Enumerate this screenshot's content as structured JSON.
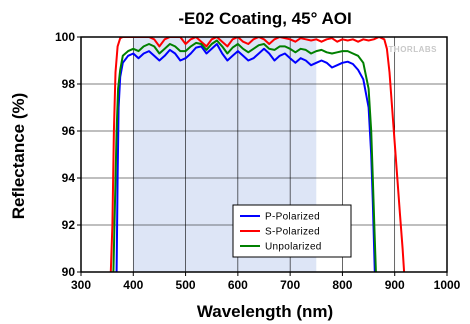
{
  "chart_data": {
    "type": "line",
    "title": "-E02 Coating, 45° AOI",
    "xlabel": "Wavelength (nm)",
    "ylabel": "Reflectance (%)",
    "xlim": [
      300,
      1000
    ],
    "ylim": [
      90,
      100
    ],
    "xticks": [
      300,
      400,
      500,
      600,
      700,
      800,
      900,
      1000
    ],
    "yticks": [
      90,
      92,
      94,
      96,
      98,
      100
    ],
    "grid": true,
    "legend_position": "bottom-right",
    "watermark": "THORLABS",
    "highlight_band": {
      "x": [
        400,
        750
      ],
      "color": "#dde5f6"
    },
    "series": [
      {
        "name": "P-Polarized",
        "color": "#0000ff",
        "points": [
          [
            368,
            90
          ],
          [
            370,
            94
          ],
          [
            372,
            97
          ],
          [
            375,
            98.3
          ],
          [
            380,
            98.9
          ],
          [
            390,
            99.2
          ],
          [
            400,
            99.3
          ],
          [
            410,
            99.1
          ],
          [
            420,
            99.3
          ],
          [
            430,
            99.4
          ],
          [
            440,
            99.2
          ],
          [
            450,
            99.0
          ],
          [
            460,
            99.2
          ],
          [
            470,
            99.45
          ],
          [
            480,
            99.3
          ],
          [
            490,
            99.0
          ],
          [
            500,
            99.1
          ],
          [
            510,
            99.3
          ],
          [
            520,
            99.55
          ],
          [
            530,
            99.6
          ],
          [
            540,
            99.3
          ],
          [
            550,
            99.5
          ],
          [
            560,
            99.7
          ],
          [
            570,
            99.3
          ],
          [
            580,
            99.0
          ],
          [
            590,
            99.2
          ],
          [
            600,
            99.4
          ],
          [
            610,
            99.2
          ],
          [
            620,
            99.0
          ],
          [
            630,
            99.1
          ],
          [
            640,
            99.3
          ],
          [
            650,
            99.5
          ],
          [
            660,
            99.3
          ],
          [
            670,
            99.0
          ],
          [
            680,
            99.2
          ],
          [
            690,
            99.3
          ],
          [
            700,
            99.1
          ],
          [
            710,
            98.9
          ],
          [
            720,
            99.1
          ],
          [
            730,
            99.0
          ],
          [
            740,
            98.8
          ],
          [
            750,
            98.9
          ],
          [
            760,
            99.0
          ],
          [
            770,
            98.9
          ],
          [
            780,
            98.7
          ],
          [
            790,
            98.8
          ],
          [
            800,
            98.9
          ],
          [
            810,
            98.95
          ],
          [
            820,
            98.85
          ],
          [
            830,
            98.6
          ],
          [
            840,
            98.2
          ],
          [
            850,
            97.0
          ],
          [
            855,
            95.0
          ],
          [
            858,
            93.0
          ],
          [
            860,
            91.5
          ],
          [
            862,
            90
          ]
        ]
      },
      {
        "name": "S-Polarized",
        "color": "#ff0000",
        "points": [
          [
            357,
            90
          ],
          [
            360,
            92
          ],
          [
            363,
            96
          ],
          [
            366,
            98.5
          ],
          [
            370,
            99.6
          ],
          [
            375,
            99.95
          ],
          [
            380,
            100
          ],
          [
            430,
            100
          ],
          [
            440,
            99.9
          ],
          [
            450,
            99.6
          ],
          [
            460,
            99.9
          ],
          [
            470,
            100
          ],
          [
            490,
            100
          ],
          [
            500,
            99.7
          ],
          [
            510,
            99.9
          ],
          [
            520,
            100
          ],
          [
            530,
            99.8
          ],
          [
            540,
            99.6
          ],
          [
            550,
            99.9
          ],
          [
            560,
            100
          ],
          [
            570,
            99.8
          ],
          [
            580,
            99.6
          ],
          [
            590,
            99.9
          ],
          [
            600,
            100
          ],
          [
            610,
            99.8
          ],
          [
            620,
            99.7
          ],
          [
            630,
            99.9
          ],
          [
            640,
            100
          ],
          [
            650,
            99.9
          ],
          [
            660,
            99.7
          ],
          [
            670,
            99.9
          ],
          [
            680,
            100
          ],
          [
            700,
            99.9
          ],
          [
            710,
            99.8
          ],
          [
            720,
            99.95
          ],
          [
            730,
            99.9
          ],
          [
            740,
            99.85
          ],
          [
            750,
            99.9
          ],
          [
            760,
            99.8
          ],
          [
            770,
            99.9
          ],
          [
            780,
            99.95
          ],
          [
            790,
            99.8
          ],
          [
            800,
            99.9
          ],
          [
            810,
            99.85
          ],
          [
            820,
            99.9
          ],
          [
            830,
            99.8
          ],
          [
            840,
            99.9
          ],
          [
            850,
            99.85
          ],
          [
            860,
            99.9
          ],
          [
            870,
            100
          ],
          [
            880,
            99.9
          ],
          [
            885,
            99.5
          ],
          [
            890,
            98.5
          ],
          [
            895,
            97.0
          ],
          [
            900,
            95.5
          ],
          [
            905,
            94.0
          ],
          [
            910,
            92.5
          ],
          [
            915,
            91.0
          ],
          [
            918,
            90
          ]
        ]
      },
      {
        "name": "Unpolarized",
        "color": "#008000",
        "points": [
          [
            362,
            90
          ],
          [
            365,
            93
          ],
          [
            368,
            96
          ],
          [
            371,
            97.8
          ],
          [
            375,
            98.6
          ],
          [
            380,
            99.2
          ],
          [
            390,
            99.4
          ],
          [
            400,
            99.5
          ],
          [
            410,
            99.4
          ],
          [
            420,
            99.6
          ],
          [
            430,
            99.7
          ],
          [
            440,
            99.6
          ],
          [
            450,
            99.3
          ],
          [
            460,
            99.5
          ],
          [
            470,
            99.7
          ],
          [
            480,
            99.6
          ],
          [
            490,
            99.4
          ],
          [
            500,
            99.4
          ],
          [
            510,
            99.6
          ],
          [
            520,
            99.75
          ],
          [
            530,
            99.7
          ],
          [
            540,
            99.45
          ],
          [
            550,
            99.7
          ],
          [
            560,
            99.85
          ],
          [
            570,
            99.6
          ],
          [
            580,
            99.3
          ],
          [
            590,
            99.55
          ],
          [
            600,
            99.7
          ],
          [
            610,
            99.5
          ],
          [
            620,
            99.35
          ],
          [
            630,
            99.5
          ],
          [
            640,
            99.65
          ],
          [
            650,
            99.7
          ],
          [
            660,
            99.5
          ],
          [
            670,
            99.45
          ],
          [
            680,
            99.6
          ],
          [
            690,
            99.6
          ],
          [
            700,
            99.5
          ],
          [
            710,
            99.35
          ],
          [
            720,
            99.5
          ],
          [
            730,
            99.45
          ],
          [
            740,
            99.3
          ],
          [
            750,
            99.4
          ],
          [
            760,
            99.45
          ],
          [
            770,
            99.35
          ],
          [
            780,
            99.3
          ],
          [
            790,
            99.35
          ],
          [
            800,
            99.4
          ],
          [
            810,
            99.4
          ],
          [
            820,
            99.3
          ],
          [
            830,
            99.2
          ],
          [
            840,
            98.9
          ],
          [
            850,
            97.8
          ],
          [
            855,
            96.0
          ],
          [
            858,
            94.0
          ],
          [
            861,
            92.0
          ],
          [
            864,
            90
          ]
        ]
      }
    ]
  }
}
